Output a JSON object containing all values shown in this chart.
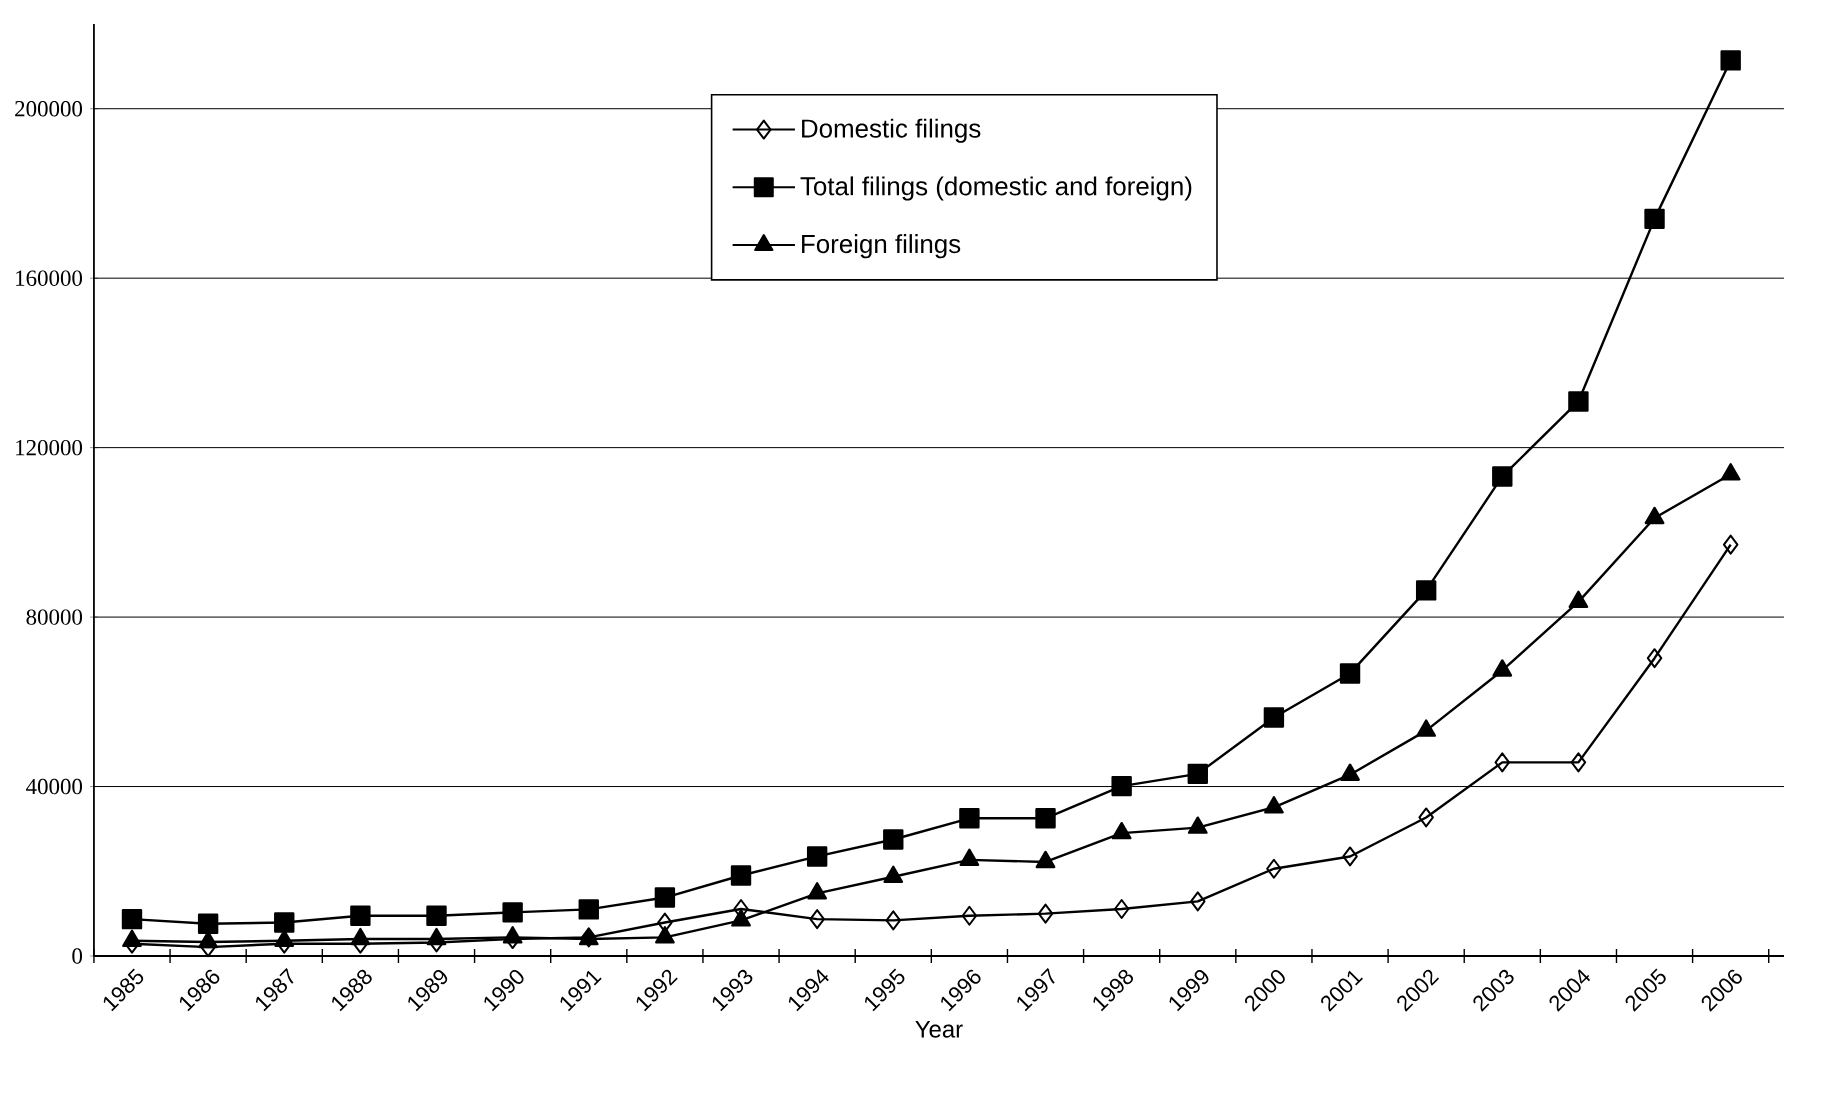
{
  "chart_data": {
    "type": "line",
    "xlabel": "Year",
    "categories": [
      "1985",
      "1986",
      "1987",
      "1988",
      "1989",
      "1990",
      "1991",
      "1992",
      "1993",
      "1994",
      "1995",
      "1996",
      "1997",
      "1998",
      "1999",
      "2000",
      "2001",
      "2002",
      "2003",
      "2004",
      "2005",
      "2006"
    ],
    "series": [
      {
        "name": "Domestic filings",
        "color": "#000000",
        "marker": "diamond",
        "values": [
          2900,
          2100,
          2900,
          2900,
          3200,
          4000,
          4400,
          7900,
          11100,
          8700,
          8400,
          9500,
          10000,
          11100,
          12900,
          20600,
          23500,
          32700,
          45700,
          45700,
          70300,
          97100
        ]
      },
      {
        "name": "Total filings (domestic and foreign)",
        "color": "#000000",
        "marker": "square",
        "values": [
          8700,
          7600,
          7900,
          9500,
          9500,
          10300,
          11000,
          13800,
          19000,
          23500,
          27500,
          32500,
          32500,
          40100,
          43000,
          56300,
          66700,
          86300,
          113200,
          130900,
          174000,
          211400
        ]
      },
      {
        "name": "Foreign filings",
        "color": "#000000",
        "marker": "triangle",
        "values": [
          3600,
          3300,
          3600,
          4000,
          4000,
          4400,
          4000,
          4400,
          8400,
          14800,
          18700,
          22700,
          22200,
          29000,
          30300,
          35100,
          42800,
          53200,
          67400,
          83600,
          103400,
          113700
        ]
      }
    ],
    "ylim": [
      0,
      220000
    ],
    "yticks": [
      0,
      40000,
      80000,
      120000,
      160000,
      200000
    ],
    "grid": "y",
    "legend": "top",
    "line_style": "solid"
  }
}
